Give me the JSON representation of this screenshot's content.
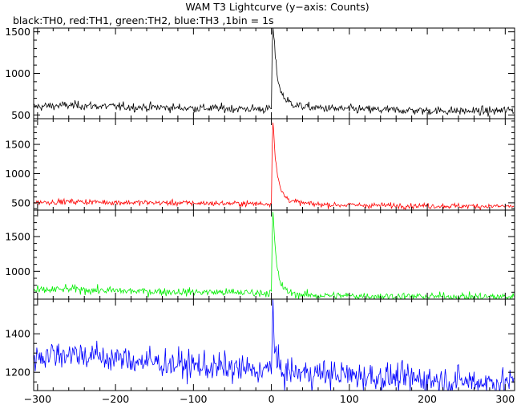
{
  "chart_data": {
    "type": "line",
    "title": "WAM T3 Lightcurve (y−axis: Counts)",
    "subtitle": "black:TH0, red:TH1, green:TH2, blue:TH3 ,1bin = 1s",
    "xlabel": "",
    "ylabel": "",
    "xlim": [
      -305,
      312
    ],
    "x_ticks": [
      -300,
      -200,
      -100,
      0,
      100,
      200,
      300
    ],
    "x_tick_labels": [
      "−300",
      "−200",
      "−100",
      "0",
      "100",
      "200",
      "300"
    ],
    "grid": false,
    "legend": "none",
    "panels": [
      {
        "name": "TH0",
        "color": "#000000",
        "ylim": [
          455,
          1545
        ],
        "y_ticks": [
          500,
          1000,
          1500
        ],
        "series": {
          "x": [
            -300,
            -280,
            -260,
            -240,
            -220,
            -200,
            -180,
            -160,
            -140,
            -120,
            -100,
            -80,
            -60,
            -40,
            -20,
            -5,
            0,
            1,
            2,
            3,
            5,
            8,
            12,
            18,
            25,
            35,
            50,
            80,
            120,
            160,
            200,
            240,
            280,
            310
          ],
          "y": [
            600,
            610,
            615,
            612,
            605,
            600,
            595,
            592,
            590,
            585,
            583,
            580,
            578,
            575,
            572,
            570,
            580,
            1300,
            1550,
            1450,
            1200,
            950,
            780,
            690,
            640,
            610,
            590,
            575,
            565,
            558,
            552,
            548,
            545,
            560
          ]
        }
      },
      {
        "name": "TH1",
        "color": "#ff0000",
        "ylim": [
          375,
          1940
        ],
        "y_ticks": [
          500,
          1000,
          1500
        ],
        "series": {
          "x": [
            -300,
            -280,
            -260,
            -240,
            -220,
            -200,
            -180,
            -160,
            -140,
            -120,
            -100,
            -80,
            -60,
            -40,
            -20,
            -5,
            0,
            1,
            2,
            3,
            5,
            8,
            12,
            18,
            25,
            35,
            50,
            80,
            120,
            160,
            200,
            240,
            280,
            310
          ],
          "y": [
            510,
            515,
            520,
            518,
            512,
            508,
            505,
            502,
            500,
            498,
            495,
            492,
            490,
            488,
            485,
            482,
            490,
            1500,
            1890,
            1700,
            1300,
            950,
            720,
            600,
            540,
            505,
            480,
            465,
            458,
            452,
            448,
            445,
            442,
            440
          ]
        }
      },
      {
        "name": "TH2",
        "color": "#00ee00",
        "ylim": [
          600,
          1880
        ],
        "y_ticks": [
          1000,
          1500
        ],
        "series": {
          "x": [
            -300,
            -280,
            -260,
            -240,
            -220,
            -200,
            -180,
            -160,
            -140,
            -120,
            -100,
            -80,
            -60,
            -40,
            -20,
            -5,
            0,
            1,
            2,
            3,
            5,
            8,
            12,
            18,
            25,
            35,
            50,
            80,
            120,
            160,
            200,
            240,
            280,
            310
          ],
          "y": [
            720,
            735,
            745,
            735,
            725,
            720,
            715,
            710,
            708,
            705,
            702,
            700,
            698,
            695,
            692,
            690,
            700,
            1500,
            1850,
            1650,
            1300,
            1000,
            820,
            730,
            690,
            668,
            655,
            650,
            645,
            640,
            638,
            636,
            635,
            634
          ]
        }
      },
      {
        "name": "TH3",
        "color": "#0000ff",
        "ylim": [
          1105,
          1580
        ],
        "y_ticks": [
          1200,
          1400
        ],
        "series": {
          "x": [
            -300,
            -280,
            -260,
            -240,
            -220,
            -200,
            -180,
            -160,
            -140,
            -120,
            -100,
            -80,
            -60,
            -40,
            -20,
            -5,
            0,
            1,
            2,
            3,
            5,
            8,
            12,
            18,
            25,
            35,
            50,
            80,
            120,
            160,
            200,
            240,
            280,
            310
          ],
          "y": [
            1285,
            1295,
            1300,
            1290,
            1280,
            1270,
            1262,
            1255,
            1248,
            1240,
            1235,
            1228,
            1222,
            1215,
            1210,
            1208,
            1220,
            1450,
            1560,
            1420,
            1300,
            1230,
            1210,
            1205,
            1200,
            1198,
            1195,
            1190,
            1180,
            1170,
            1162,
            1155,
            1150,
            1145
          ]
        }
      }
    ]
  }
}
